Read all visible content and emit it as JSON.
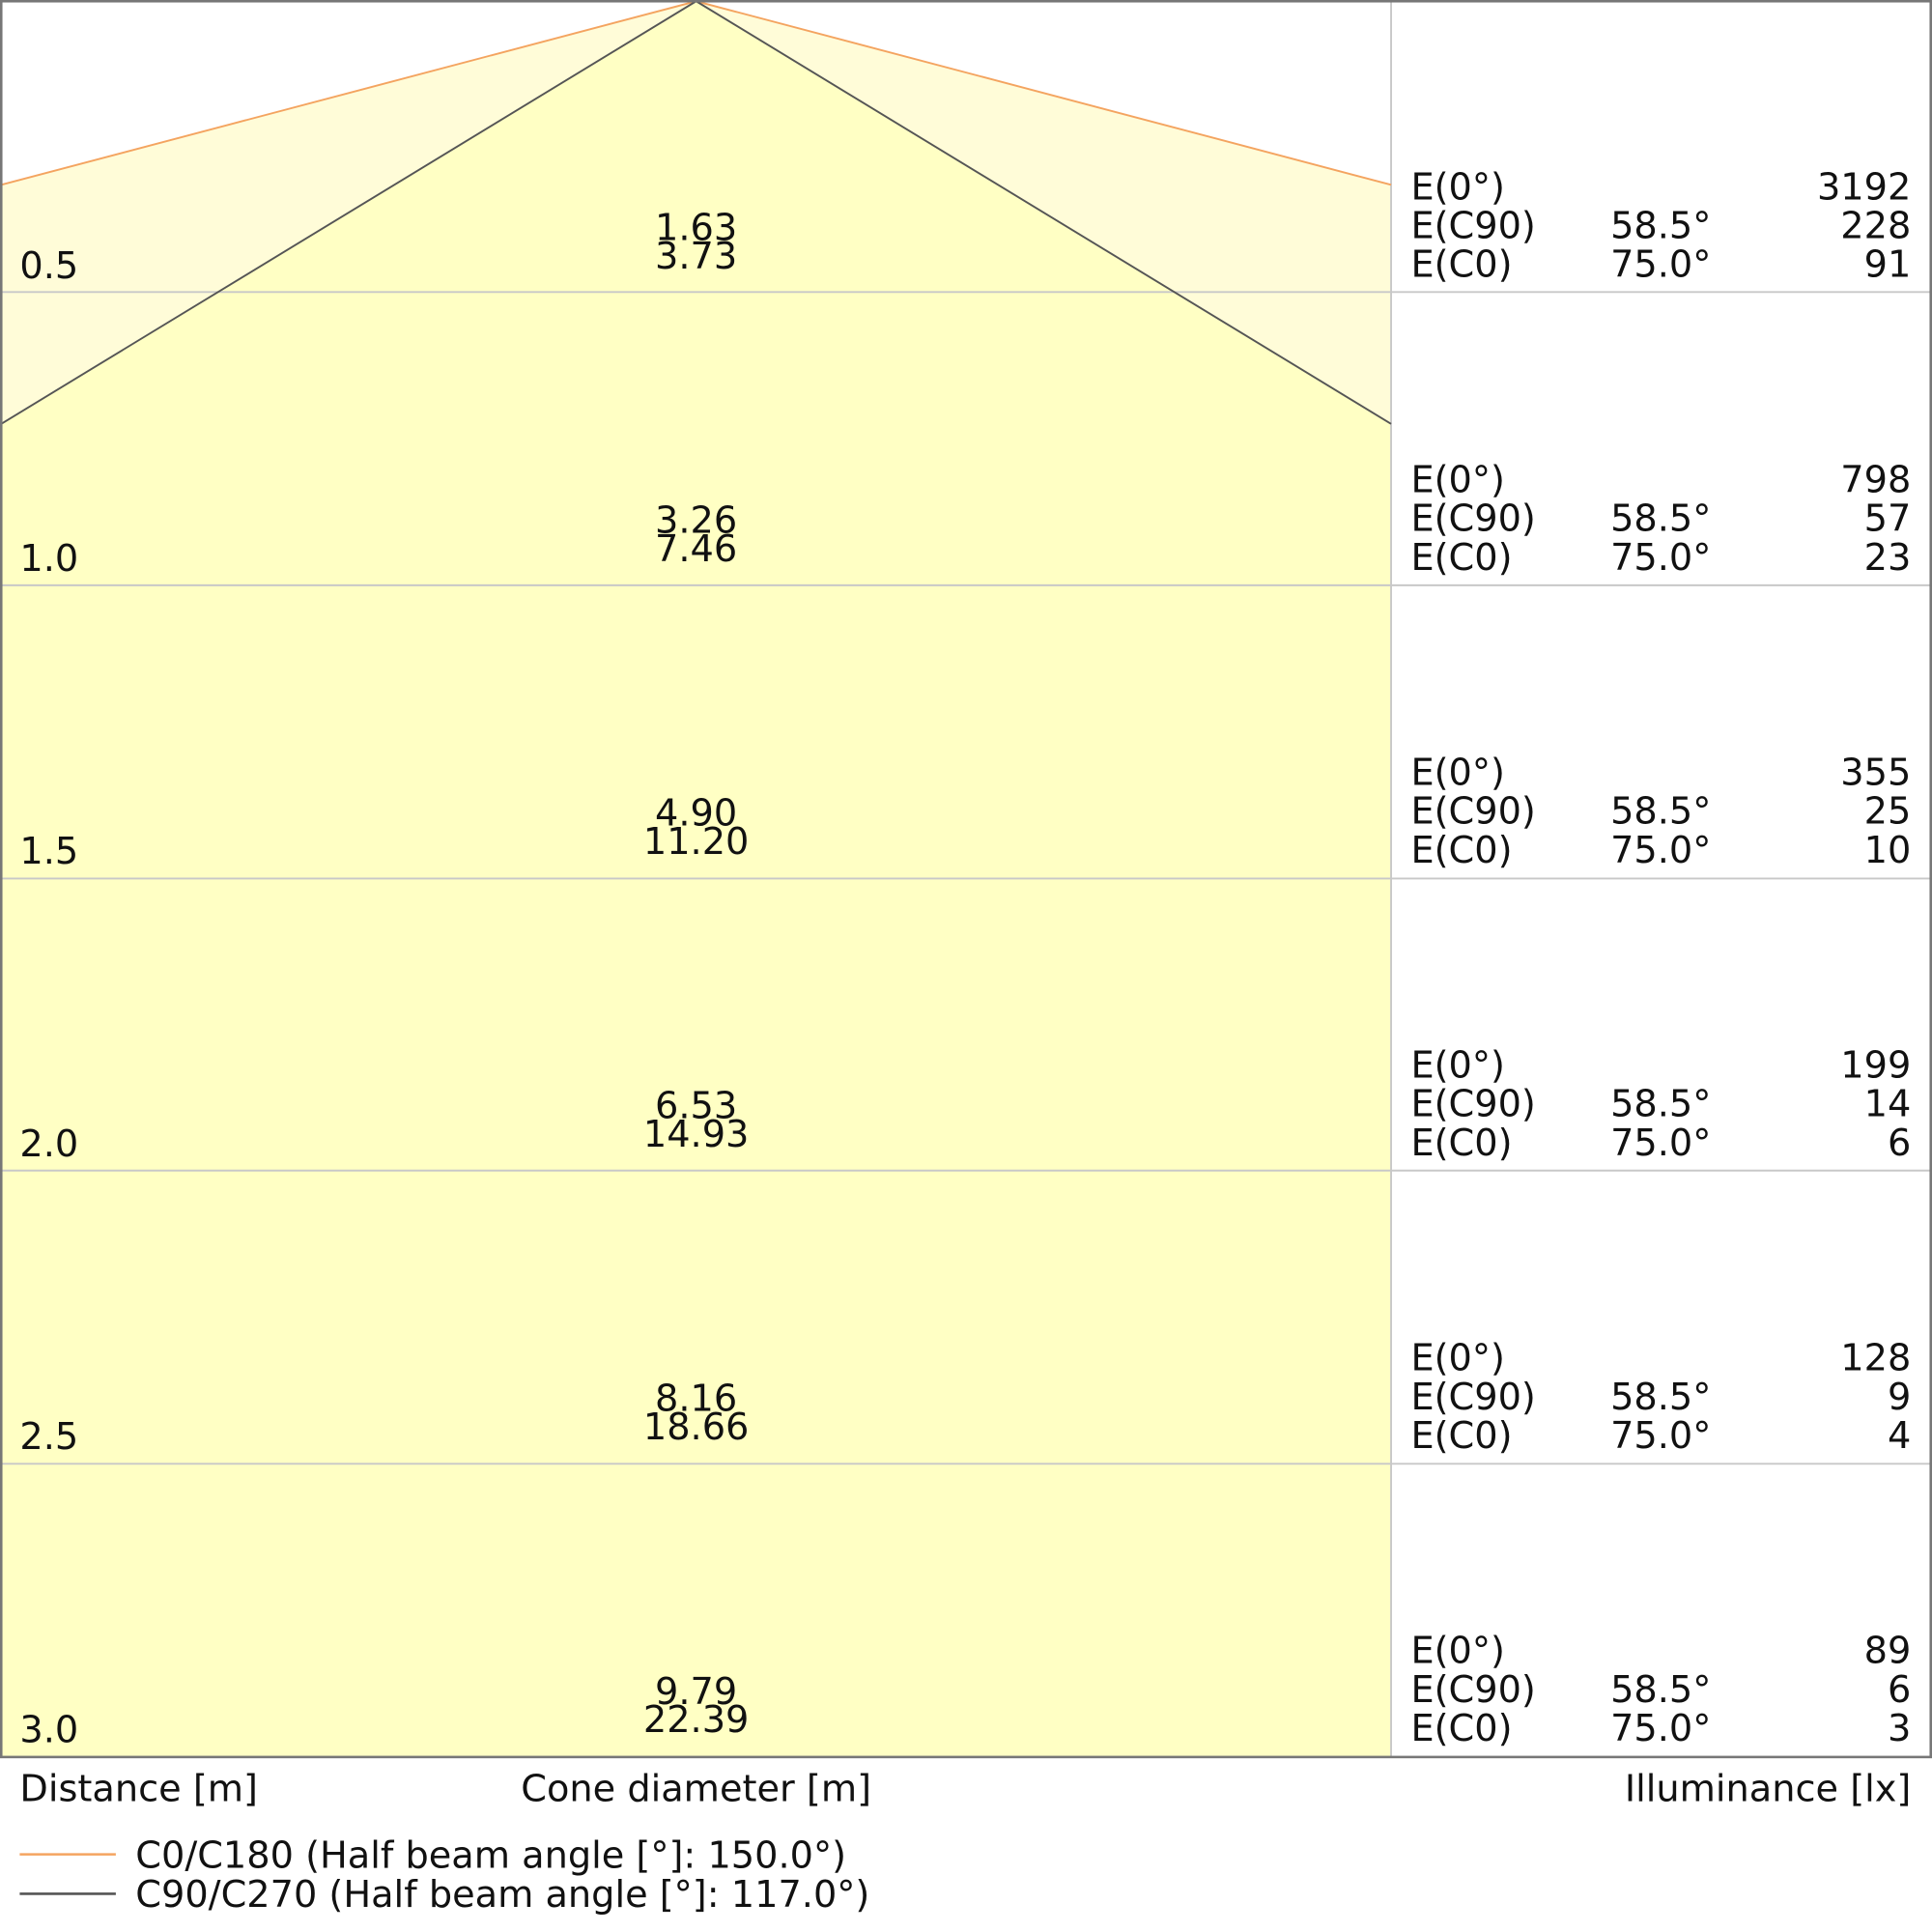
{
  "rows": [
    {
      "distance": "0.5",
      "cone_c90": "1.63",
      "cone_c0": "3.73",
      "illuminance": [
        {
          "label": "E(0°)",
          "value": "3192"
        },
        {
          "label": "E(C90)",
          "angle": "58.5°",
          "value": "228"
        },
        {
          "label": "E(C0)",
          "angle": "75.0°",
          "value": "91"
        }
      ]
    },
    {
      "distance": "1.0",
      "cone_c90": "3.26",
      "cone_c0": "7.46",
      "illuminance": [
        {
          "label": "E(0°)",
          "value": "798"
        },
        {
          "label": "E(C90)",
          "angle": "58.5°",
          "value": "57"
        },
        {
          "label": "E(C0)",
          "angle": "75.0°",
          "value": "23"
        }
      ]
    },
    {
      "distance": "1.5",
      "cone_c90": "4.90",
      "cone_c0": "11.20",
      "illuminance": [
        {
          "label": "E(0°)",
          "value": "355"
        },
        {
          "label": "E(C90)",
          "angle": "58.5°",
          "value": "25"
        },
        {
          "label": "E(C0)",
          "angle": "75.0°",
          "value": "10"
        }
      ]
    },
    {
      "distance": "2.0",
      "cone_c90": "6.53",
      "cone_c0": "14.93",
      "illuminance": [
        {
          "label": "E(0°)",
          "value": "199"
        },
        {
          "label": "E(C90)",
          "angle": "58.5°",
          "value": "14"
        },
        {
          "label": "E(C0)",
          "angle": "75.0°",
          "value": "6"
        }
      ]
    },
    {
      "distance": "2.5",
      "cone_c90": "8.16",
      "cone_c0": "18.66",
      "illuminance": [
        {
          "label": "E(0°)",
          "value": "128"
        },
        {
          "label": "E(C90)",
          "angle": "58.5°",
          "value": "9"
        },
        {
          "label": "E(C0)",
          "angle": "75.0°",
          "value": "4"
        }
      ]
    },
    {
      "distance": "3.0",
      "cone_c90": "9.79",
      "cone_c0": "22.39",
      "illuminance": [
        {
          "label": "E(0°)",
          "value": "89"
        },
        {
          "label": "E(C90)",
          "angle": "58.5°",
          "value": "6"
        },
        {
          "label": "E(C0)",
          "angle": "75.0°",
          "value": "3"
        }
      ]
    }
  ],
  "footer": {
    "distance": "Distance [m]",
    "cone": "Cone diameter [m]",
    "illuminance": "Illuminance [lx]"
  },
  "legend": {
    "c0": "C0/C180 (Half beam angle [°]: 150.0°)",
    "c90": "C90/C270 (Half beam angle [°]: 117.0°)"
  }
}
